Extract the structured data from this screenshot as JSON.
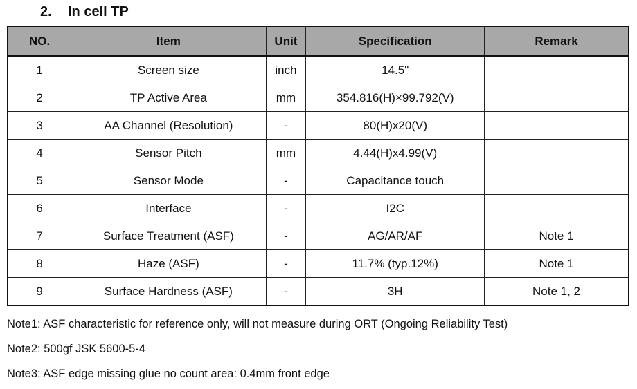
{
  "section": {
    "number": "2.",
    "title": "In cell TP"
  },
  "table": {
    "headers": [
      "NO.",
      "Item",
      "Unit",
      "Specification",
      "Remark"
    ],
    "rows": [
      [
        "1",
        "Screen size",
        "inch",
        "14.5\"",
        ""
      ],
      [
        "2",
        "TP Active Area",
        "mm",
        "354.816(H)×99.792(V)",
        ""
      ],
      [
        "3",
        "AA Channel (Resolution)",
        "-",
        "80(H)x20(V)",
        ""
      ],
      [
        "4",
        "Sensor Pitch",
        "mm",
        "4.44(H)x4.99(V)",
        ""
      ],
      [
        "5",
        "Sensor Mode",
        "-",
        "Capacitance touch",
        ""
      ],
      [
        "6",
        "Interface",
        "-",
        "I2C",
        ""
      ],
      [
        "7",
        "Surface Treatment (ASF)",
        "-",
        "AG/AR/AF",
        "Note 1"
      ],
      [
        "8",
        "Haze (ASF)",
        "-",
        "11.7% (typ.12%)",
        "Note 1"
      ],
      [
        "9",
        "Surface Hardness (ASF)",
        "-",
        "3H",
        "Note 1, 2"
      ]
    ]
  },
  "notes": [
    "Note1: ASF characteristic for reference only, will not measure during ORT (Ongoing Reliability Test)",
    "Note2: 500gf JSK 5600-5-4",
    "Note3: ASF edge missing glue no count area: 0.4mm front edge"
  ]
}
